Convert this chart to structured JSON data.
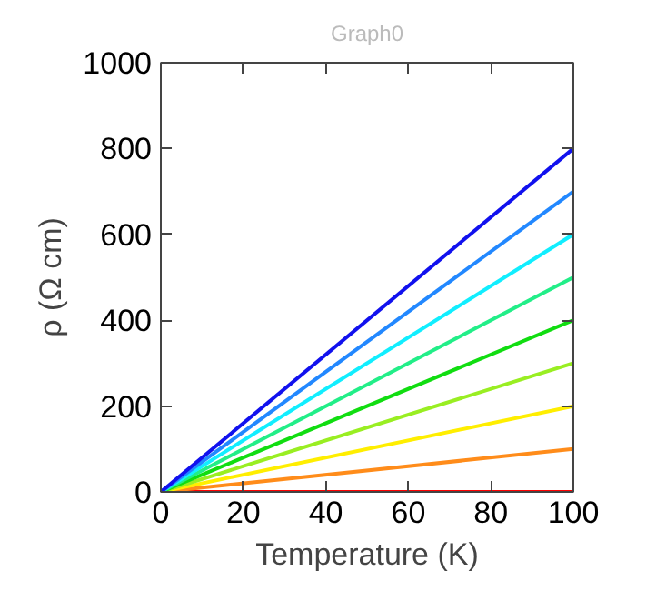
{
  "chart_data": {
    "type": "line",
    "title": "Graph0",
    "xlabel": "Temperature (K)",
    "ylabel": "ρ (Ω cm)",
    "xlim": [
      0,
      100
    ],
    "ylim": [
      0,
      1000
    ],
    "xticks": [
      0,
      20,
      40,
      60,
      80,
      100
    ],
    "yticks": [
      0,
      200,
      400,
      600,
      800,
      1000
    ],
    "grid": false,
    "x": [
      0,
      100
    ],
    "series": [
      {
        "color": "#ff0000",
        "values": [
          0,
          0
        ]
      },
      {
        "color": "#ff8c1a",
        "values": [
          0,
          100
        ]
      },
      {
        "color": "#ffee00",
        "values": [
          0,
          200
        ]
      },
      {
        "color": "#99ee22",
        "values": [
          0,
          300
        ]
      },
      {
        "color": "#11dd11",
        "values": [
          0,
          400
        ]
      },
      {
        "color": "#22ee88",
        "values": [
          0,
          500
        ]
      },
      {
        "color": "#11eeff",
        "values": [
          0,
          600
        ]
      },
      {
        "color": "#2288ff",
        "values": [
          0,
          700
        ]
      },
      {
        "color": "#1111ee",
        "values": [
          0,
          800
        ]
      }
    ]
  }
}
